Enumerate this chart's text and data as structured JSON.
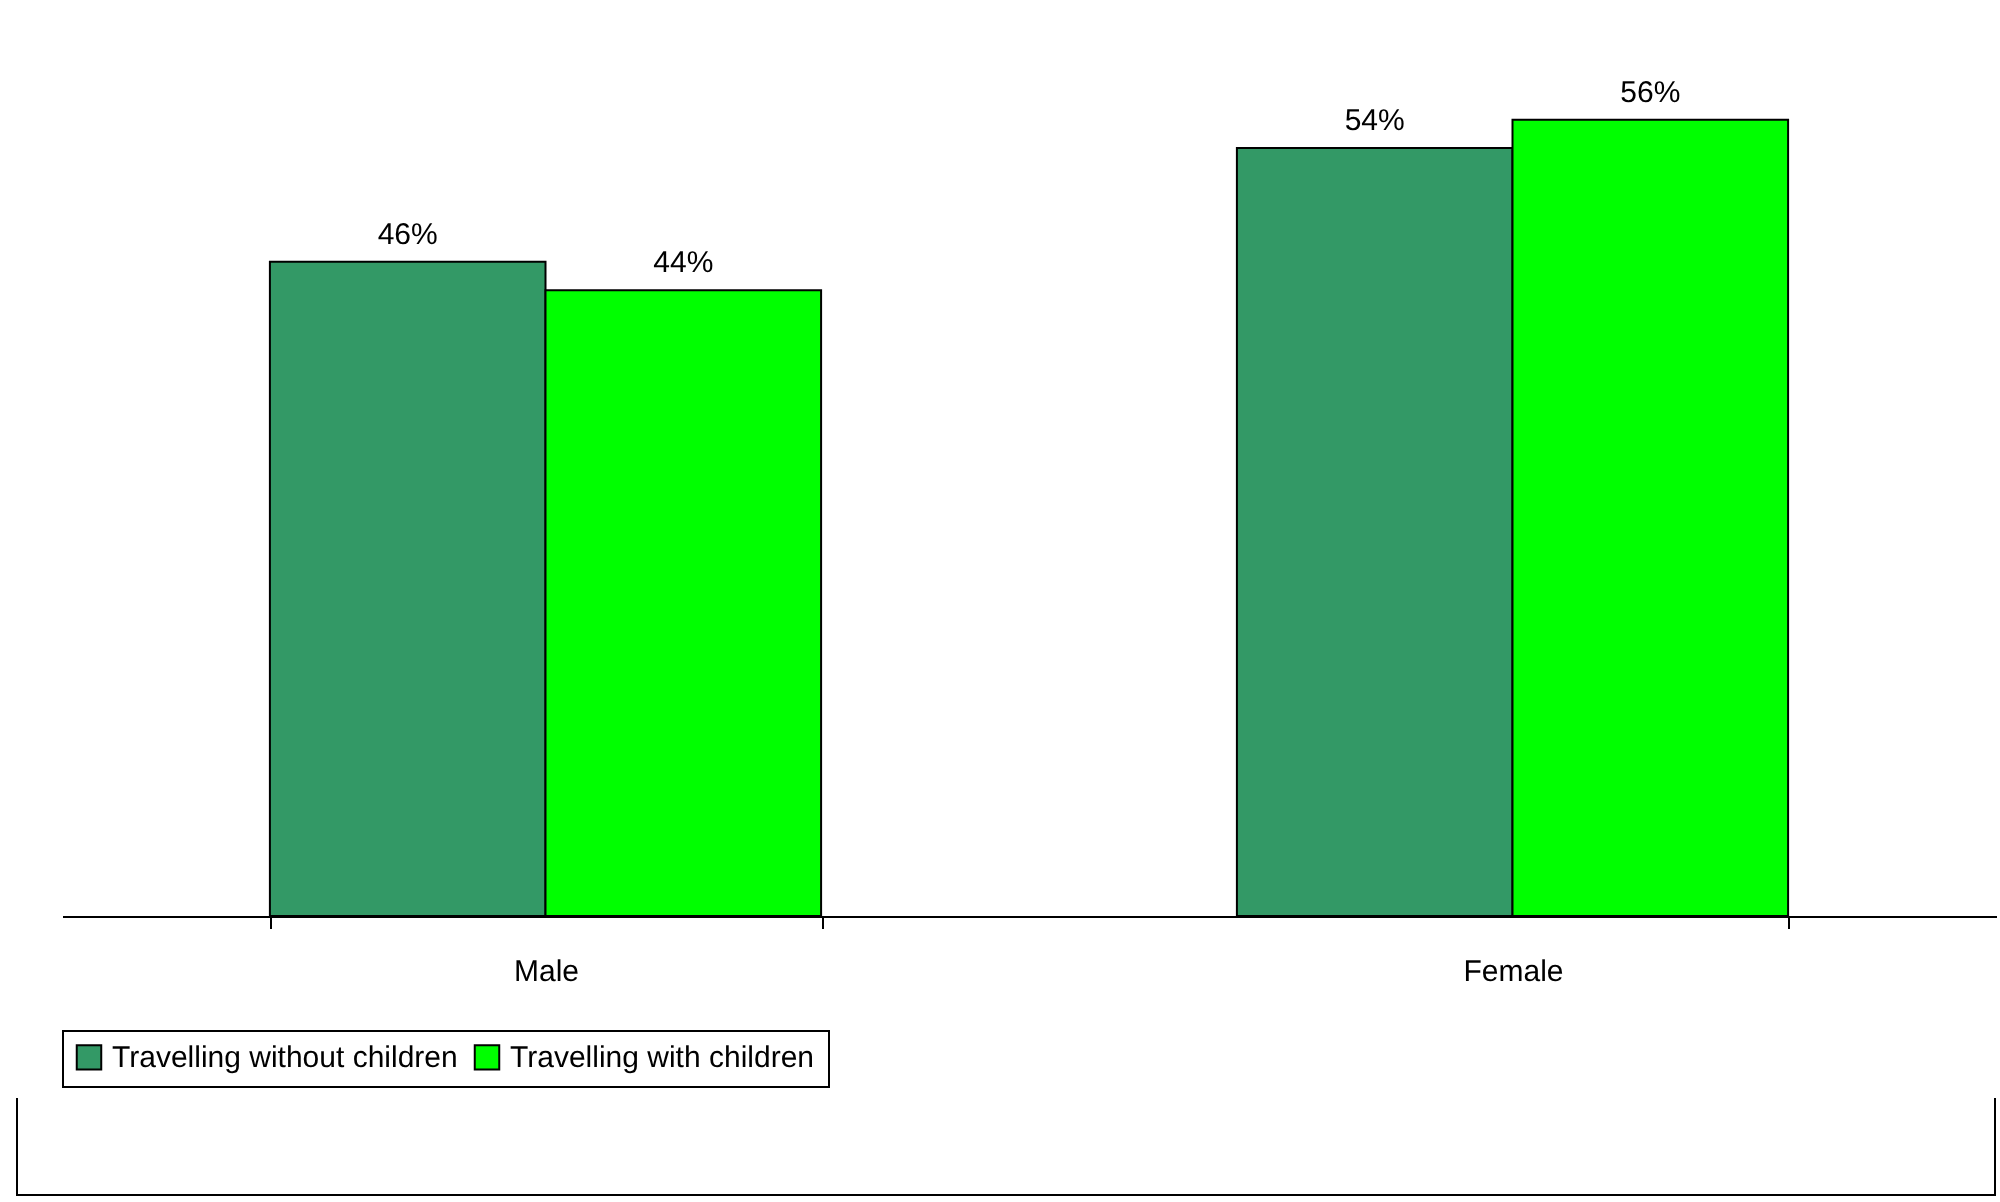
{
  "chart_data": {
    "type": "bar",
    "categories": [
      "Male",
      "Female"
    ],
    "series": [
      {
        "name": "Travelling without children",
        "color": "#339966",
        "values": [
          46,
          54
        ],
        "value_labels": [
          "46%",
          "54%"
        ]
      },
      {
        "name": "Travelling with children",
        "color": "#00ff00",
        "values": [
          44,
          56
        ],
        "value_labels": [
          "44%",
          "56%"
        ]
      }
    ],
    "legend": "bottom",
    "grid": false
  }
}
